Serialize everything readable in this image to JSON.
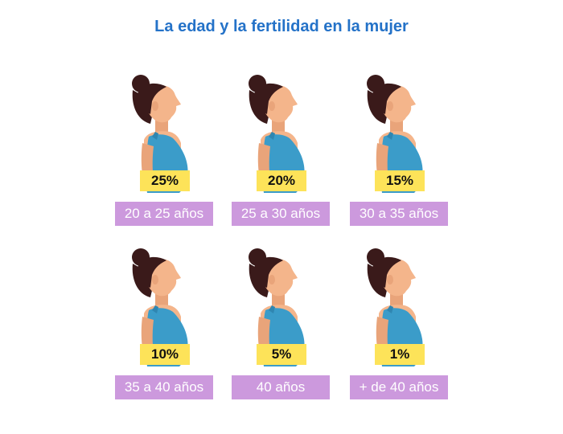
{
  "title": "La edad y la fertilidad en la mujer",
  "colors": {
    "title": "#2472c8",
    "percent_badge": "#fde359",
    "age_badge": "#cc99dd",
    "skin": "#f4b58b",
    "hair": "#3a1a1a",
    "top": "#3b9cc9"
  },
  "items": [
    {
      "percent": "25%",
      "age": "20 a 25 años"
    },
    {
      "percent": "20%",
      "age": "25 a 30 años"
    },
    {
      "percent": "15%",
      "age": "30 a 35 años"
    },
    {
      "percent": "10%",
      "age": "35 a 40 años"
    },
    {
      "percent": "5%",
      "age": "40 años"
    },
    {
      "percent": "1%",
      "age": "+ de 40 años"
    }
  ]
}
